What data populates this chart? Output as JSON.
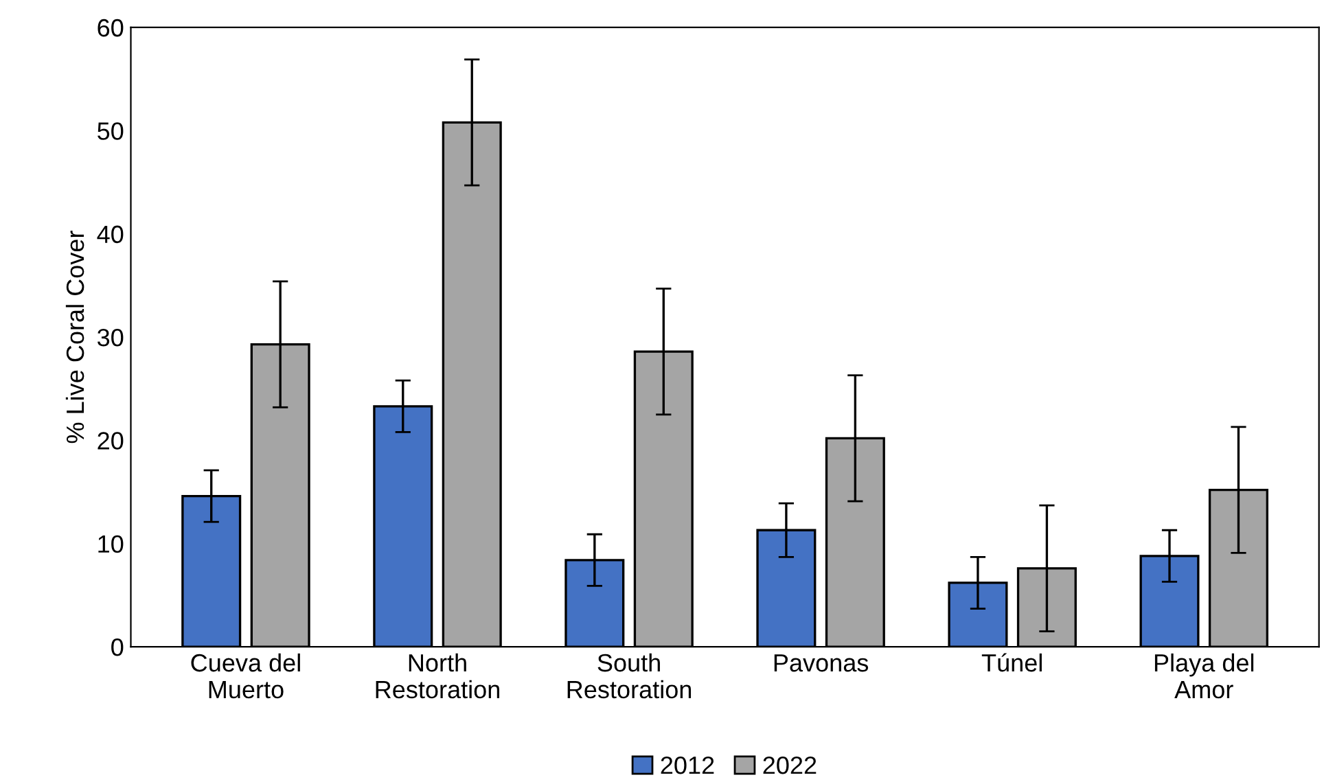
{
  "chart_data": {
    "type": "bar",
    "ylabel": "% Live Coral Cover",
    "categories": [
      "Cueva del\nMuerto",
      "North\nRestoration",
      "South\nRestoration",
      "Pavonas",
      "Túnel",
      "Playa del\nAmor"
    ],
    "series": [
      {
        "name": "2012",
        "color": "#4472c4",
        "values": [
          14.6,
          23.3,
          8.4,
          11.3,
          6.2,
          8.8
        ],
        "errors": [
          2.5,
          2.5,
          2.5,
          2.6,
          2.5,
          2.5
        ]
      },
      {
        "name": "2022",
        "color": "#a5a5a5",
        "values": [
          29.3,
          50.8,
          28.6,
          20.2,
          7.6,
          15.2
        ],
        "errors": [
          6.1,
          6.1,
          6.1,
          6.1,
          6.1,
          6.1
        ]
      }
    ],
    "ylim": [
      0,
      60
    ],
    "yticks": [
      0,
      10,
      20,
      30,
      40,
      50,
      60
    ],
    "grid": false,
    "legend": "bottom"
  }
}
